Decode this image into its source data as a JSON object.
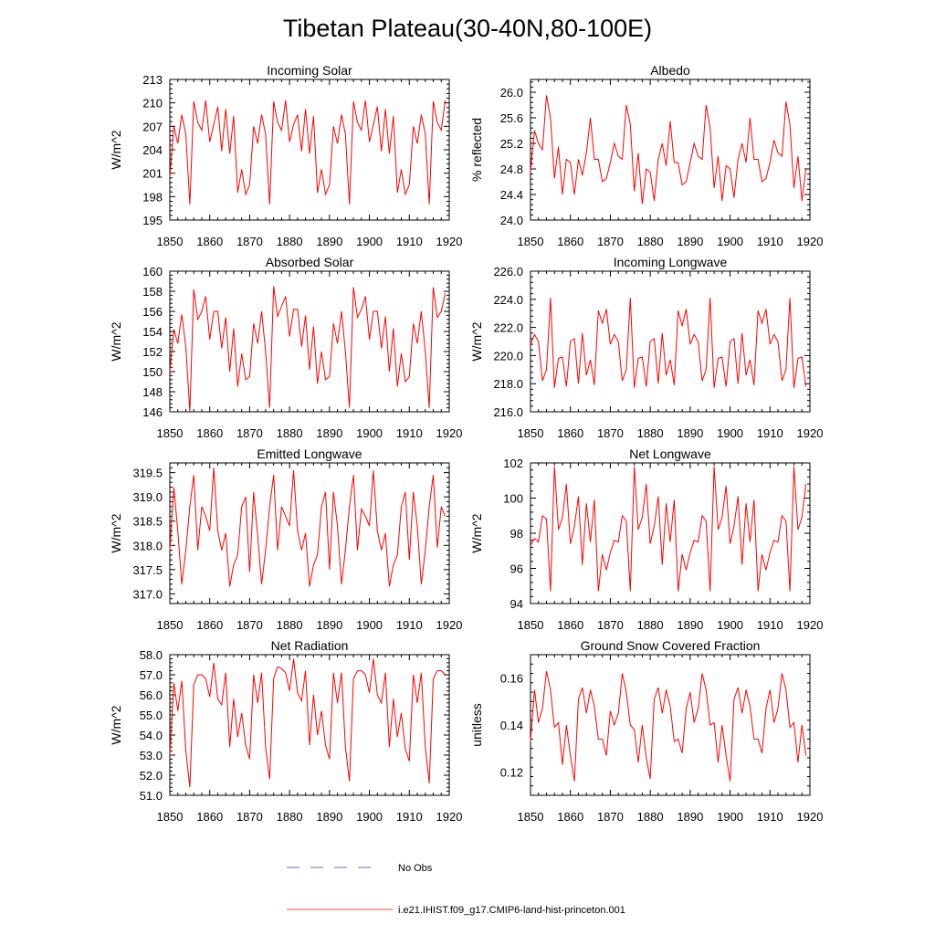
{
  "figure_title": "Tibetan Plateau(30-40N,80-100E)",
  "legend": [
    {
      "label": "No Obs",
      "color": "#6a6ad8",
      "dash": true
    },
    {
      "label": "i.e21.IHIST.f09_g17.CMIP6-land-hist-princeton.001",
      "color": "#ff4040",
      "dash": false
    }
  ],
  "chart_data": [
    {
      "type": "line",
      "title": "Incoming Solar",
      "ylabel": "W/m^2",
      "xlim": [
        1850,
        1920
      ],
      "ylim": [
        195,
        213
      ],
      "xticks": [
        1850,
        1860,
        1870,
        1880,
        1890,
        1900,
        1910,
        1920
      ],
      "yticks": [
        195,
        198,
        201,
        204,
        207,
        210,
        213
      ],
      "ytick_labels": [
        "195",
        "198",
        "201",
        "204",
        "207",
        "210",
        "213"
      ],
      "x_start": 1850,
      "series": [
        {
          "color": "#ff0000",
          "values": [
            200.5,
            207,
            204.8,
            208.5,
            206,
            197,
            210.2,
            207.5,
            206.5,
            210.3,
            205,
            207.2,
            209.5,
            203.8,
            209.2,
            203.5,
            208.3,
            198.5,
            201.5,
            198.3,
            199.5,
            207,
            204.8,
            208.5,
            206,
            197,
            210.2,
            207.5,
            206.5,
            210.3,
            205,
            207.2,
            208.5,
            203.8,
            209.2,
            203.5,
            208.3,
            198.5,
            201.5,
            198.3,
            199.5,
            207,
            204.8,
            208.5,
            206,
            197,
            210.2,
            207.5,
            206.5,
            210.3,
            205,
            207.2,
            209.5,
            203.8,
            209.2,
            203.5,
            208.3,
            198.5,
            201.5,
            198.3,
            199.5,
            207,
            204.8,
            208.5,
            206,
            197,
            210.2,
            207.5,
            206.5,
            210.3
          ]
        }
      ]
    },
    {
      "type": "line",
      "title": "Albedo",
      "ylabel": "% reflected",
      "xlim": [
        1850,
        1920
      ],
      "ylim": [
        24.0,
        26.2
      ],
      "xticks": [
        1850,
        1860,
        1870,
        1880,
        1890,
        1900,
        1910,
        1920
      ],
      "yticks": [
        24.0,
        24.4,
        24.8,
        25.2,
        25.6,
        26.0
      ],
      "ytick_labels": [
        "24.0",
        "24.4",
        "24.8",
        "25.2",
        "25.6",
        "26.0"
      ],
      "x_start": 1850,
      "series": [
        {
          "color": "#ff0000",
          "values": [
            24.75,
            25.4,
            25.2,
            25.1,
            25.95,
            25.6,
            24.65,
            25.15,
            24.4,
            24.95,
            24.9,
            24.4,
            24.95,
            24.7,
            25.05,
            25.6,
            24.95,
            24.95,
            24.6,
            24.65,
            24.9,
            25.2,
            25.0,
            24.95,
            25.8,
            25.5,
            24.45,
            25.05,
            24.25,
            24.8,
            24.75,
            24.3,
            24.95,
            25.2,
            24.85,
            25.55,
            24.9,
            24.9,
            24.55,
            24.6,
            24.9,
            25.2,
            25.0,
            24.95,
            25.8,
            25.45,
            24.5,
            25.0,
            24.3,
            24.85,
            24.8,
            24.35,
            24.95,
            25.2,
            24.9,
            25.6,
            24.95,
            24.95,
            24.6,
            24.65,
            24.9,
            25.25,
            25.05,
            25.0,
            25.85,
            25.5,
            24.5,
            25.0,
            24.3,
            24.8
          ]
        }
      ]
    },
    {
      "type": "line",
      "title": "Absorbed Solar",
      "ylabel": "W/m^2",
      "xlim": [
        1850,
        1920
      ],
      "ylim": [
        146,
        160
      ],
      "xticks": [
        1850,
        1860,
        1870,
        1880,
        1890,
        1900,
        1910,
        1920
      ],
      "yticks": [
        146,
        148,
        150,
        152,
        154,
        156,
        158,
        160
      ],
      "ytick_labels": [
        "146",
        "148",
        "150",
        "152",
        "154",
        "156",
        "158",
        "160"
      ],
      "x_start": 1850,
      "series": [
        {
          "color": "#ff0000",
          "values": [
            150,
            154.2,
            152.8,
            155.7,
            152.5,
            146,
            158.2,
            155.2,
            156,
            157.5,
            153.2,
            156,
            156,
            152.3,
            155.4,
            150,
            154.3,
            148.5,
            151.8,
            149.2,
            149.5,
            154.8,
            152.8,
            156,
            152,
            146.4,
            158.5,
            155.5,
            156.5,
            157.5,
            153.5,
            156.2,
            156.2,
            152.5,
            155.6,
            150.2,
            154.5,
            148.8,
            152,
            149.2,
            149.5,
            154.8,
            152.8,
            156,
            152,
            146.4,
            158.4,
            155.4,
            156.2,
            157.5,
            153.2,
            156,
            156,
            152.3,
            155.5,
            150,
            154.3,
            148.5,
            151.8,
            149,
            149.5,
            154.8,
            152.8,
            156,
            152,
            146.4,
            158.4,
            155.4,
            156,
            157.8
          ]
        }
      ]
    },
    {
      "type": "line",
      "title": "Incoming Longwave",
      "ylabel": "W/m^2",
      "xlim": [
        1850,
        1920
      ],
      "ylim": [
        216.0,
        226.0
      ],
      "xticks": [
        1850,
        1860,
        1870,
        1880,
        1890,
        1900,
        1910,
        1920
      ],
      "yticks": [
        216.0,
        218.0,
        220.0,
        222.0,
        224.0,
        226.0
      ],
      "ytick_labels": [
        "216.0",
        "218.0",
        "220.0",
        "222.0",
        "224.0",
        "226.0"
      ],
      "x_start": 1850,
      "series": [
        {
          "color": "#ff0000",
          "values": [
            220.8,
            221.5,
            221,
            218.2,
            219,
            224.1,
            217.7,
            219.8,
            219.9,
            217.8,
            221,
            221.2,
            218,
            221.6,
            218.6,
            219.7,
            217.9,
            223.2,
            222.3,
            223.3,
            220.8,
            221.5,
            221,
            218.2,
            219,
            224.1,
            217.7,
            219.8,
            219.9,
            217.8,
            221,
            221.2,
            218,
            221.6,
            218.6,
            219.7,
            217.9,
            223.2,
            222.1,
            223.3,
            220.8,
            221.5,
            221,
            218.2,
            219,
            224.1,
            217.7,
            219.8,
            219.9,
            217.8,
            221,
            221.2,
            218,
            221.6,
            218.6,
            219.7,
            217.9,
            223.2,
            222.3,
            223.3,
            220.8,
            221.5,
            221,
            218.2,
            219,
            224.1,
            217.7,
            219.8,
            219.9,
            217.8
          ]
        }
      ]
    },
    {
      "type": "line",
      "title": "Emitted Longwave",
      "ylabel": "W/m^2",
      "xlim": [
        1850,
        1920
      ],
      "ylim": [
        316.8,
        319.7
      ],
      "xticks": [
        1850,
        1860,
        1870,
        1880,
        1890,
        1900,
        1910,
        1920
      ],
      "yticks": [
        317.0,
        317.5,
        318.0,
        318.5,
        319.0,
        319.5
      ],
      "ytick_labels": [
        "317.0",
        "317.5",
        "318.0",
        "318.5",
        "319.0",
        "319.5"
      ],
      "x_start": 1850,
      "series": [
        {
          "color": "#ff0000",
          "values": [
            317.9,
            319.2,
            318.3,
            317.2,
            317.9,
            318.8,
            319.45,
            317.9,
            318.8,
            318.6,
            318.3,
            319.6,
            318.3,
            317.9,
            318.25,
            317.15,
            317.6,
            317.8,
            318.8,
            319.0,
            317.45,
            319.1,
            318.2,
            317.2,
            317.9,
            318.8,
            319.45,
            317.9,
            318.8,
            318.6,
            318.4,
            319.55,
            318.3,
            317.9,
            318.25,
            317.15,
            317.6,
            317.8,
            318.8,
            319.1,
            317.5,
            319.1,
            318.4,
            317.2,
            317.9,
            318.8,
            319.45,
            317.9,
            318.75,
            318.6,
            318.4,
            319.55,
            318.3,
            317.9,
            318.25,
            317.15,
            317.6,
            317.8,
            318.8,
            319.1,
            317.7,
            319.1,
            318.4,
            317.2,
            317.9,
            318.8,
            319.45,
            317.95,
            318.8,
            318.6
          ]
        }
      ]
    },
    {
      "type": "line",
      "title": "Net Longwave",
      "ylabel": "W/m^2",
      "xlim": [
        1850,
        1920
      ],
      "ylim": [
        94,
        102
      ],
      "xticks": [
        1850,
        1860,
        1870,
        1880,
        1890,
        1900,
        1910,
        1920
      ],
      "yticks": [
        94,
        96,
        98,
        100,
        102
      ],
      "ytick_labels": [
        "94",
        "96",
        "98",
        "100",
        "102"
      ],
      "x_start": 1850,
      "series": [
        {
          "color": "#ff0000",
          "values": [
            97.3,
            97.7,
            97.5,
            99,
            98.8,
            94.7,
            101.8,
            98.2,
            98.9,
            100.8,
            97.4,
            98.4,
            100.1,
            96.2,
            99.7,
            97.5,
            99.9,
            94.7,
            96.8,
            95.9,
            96.9,
            97.6,
            97.5,
            99,
            98.7,
            94.7,
            101.8,
            98.2,
            98.9,
            100.8,
            97.4,
            98.4,
            100.1,
            96.2,
            99.7,
            97.5,
            99.9,
            94.7,
            96.8,
            95.9,
            96.9,
            97.6,
            97.5,
            99,
            98.7,
            94.7,
            101.8,
            98.2,
            98.9,
            100.7,
            97.4,
            98.4,
            100.1,
            96.2,
            99.7,
            97.5,
            99.9,
            94.7,
            96.8,
            95.9,
            96.9,
            97.6,
            97.5,
            99,
            98.7,
            94.7,
            101.8,
            98.2,
            98.9,
            100.8
          ]
        }
      ]
    },
    {
      "type": "line",
      "title": "Net Radiation",
      "ylabel": "W/m^2",
      "xlim": [
        1850,
        1920
      ],
      "ylim": [
        51.0,
        58.0
      ],
      "xticks": [
        1850,
        1860,
        1870,
        1880,
        1890,
        1900,
        1910,
        1920
      ],
      "yticks": [
        51.0,
        52.0,
        53.0,
        54.0,
        55.0,
        56.0,
        57.0,
        58.0
      ],
      "ytick_labels": [
        "51.0",
        "52.0",
        "53.0",
        "54.0",
        "55.0",
        "56.0",
        "57.0",
        "58.0"
      ],
      "x_start": 1850,
      "series": [
        {
          "color": "#ff0000",
          "values": [
            53,
            56.6,
            55.2,
            56.7,
            53.2,
            51.4,
            56.5,
            57,
            57,
            56.8,
            55.9,
            57.6,
            55.8,
            55.5,
            57.1,
            53.4,
            55.8,
            53.9,
            55.1,
            53.5,
            52.8,
            57,
            55.6,
            57.1,
            53.4,
            51.8,
            56.8,
            57.4,
            57.3,
            57.1,
            56.2,
            57.8,
            56.1,
            55.7,
            57.2,
            53.5,
            56,
            54,
            55.2,
            53.5,
            52.8,
            57.1,
            55.6,
            57.1,
            53.4,
            51.7,
            56.8,
            57.2,
            57.2,
            57,
            56.1,
            57.8,
            56,
            55.6,
            57.1,
            53.4,
            55.8,
            53.9,
            55.1,
            53.3,
            52.7,
            57,
            55.6,
            57.1,
            53.4,
            51.6,
            56.8,
            57.2,
            57.2,
            57
          ]
        }
      ]
    },
    {
      "type": "line",
      "title": "Ground Snow Covered Fraction",
      "ylabel": "unitless",
      "xlim": [
        1850,
        1920
      ],
      "ylim": [
        0.11,
        0.17
      ],
      "xticks": [
        1850,
        1860,
        1870,
        1880,
        1890,
        1900,
        1910,
        1920
      ],
      "yticks": [
        0.12,
        0.14,
        0.16
      ],
      "ytick_labels": [
        "0.12",
        "0.14",
        "0.16"
      ],
      "x_start": 1850,
      "series": [
        {
          "color": "#ff0000",
          "values": [
            0.133,
            0.155,
            0.141,
            0.147,
            0.163,
            0.155,
            0.139,
            0.141,
            0.123,
            0.14,
            0.127,
            0.116,
            0.151,
            0.156,
            0.145,
            0.155,
            0.148,
            0.134,
            0.134,
            0.127,
            0.146,
            0.14,
            0.145,
            0.162,
            0.154,
            0.14,
            0.138,
            0.124,
            0.14,
            0.126,
            0.117,
            0.151,
            0.156,
            0.145,
            0.155,
            0.148,
            0.133,
            0.134,
            0.128,
            0.147,
            0.154,
            0.141,
            0.147,
            0.162,
            0.155,
            0.14,
            0.141,
            0.124,
            0.14,
            0.127,
            0.116,
            0.151,
            0.156,
            0.145,
            0.155,
            0.148,
            0.134,
            0.134,
            0.128,
            0.147,
            0.155,
            0.141,
            0.147,
            0.162,
            0.155,
            0.139,
            0.141,
            0.124,
            0.14,
            0.127
          ]
        }
      ]
    }
  ]
}
